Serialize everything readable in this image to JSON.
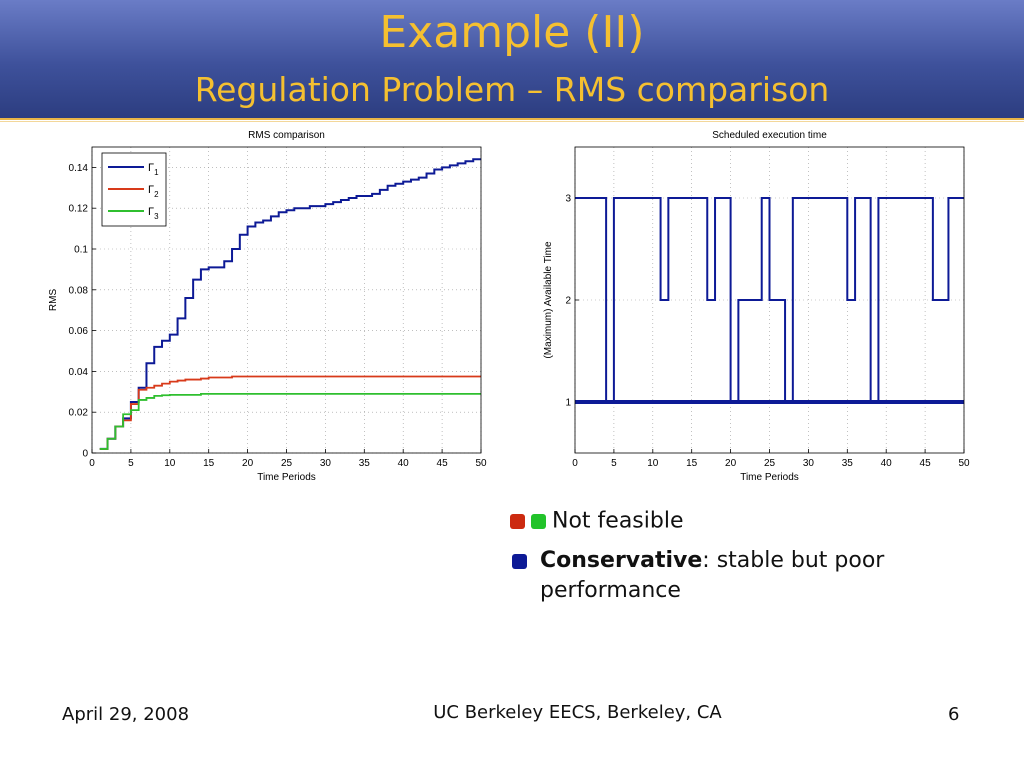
{
  "slide": {
    "title": "Example (II)",
    "subtitle": "Regulation Problem – RMS comparison",
    "footer_date": "April 29, 2008",
    "footer_org": "UC Berkeley EECS, Berkeley, CA",
    "page_number": "6",
    "header_color": "#3e519b",
    "title_color": "#f5c030"
  },
  "bullets": {
    "not_feasible": "Not feasible",
    "conservative_bold": "Conservative",
    "conservative_rest": ": stable but poor performance",
    "colors": {
      "red": "#cc2a10",
      "green": "#22c32a",
      "blue": "#0d1a96"
    }
  },
  "chart_data": [
    {
      "type": "line",
      "title": "RMS comparison",
      "xlabel": "Time Periods",
      "ylabel": "RMS",
      "xlim": [
        0,
        50
      ],
      "ylim": [
        0,
        0.15
      ],
      "xticks": [
        "0",
        "5",
        "10",
        "15",
        "20",
        "25",
        "30",
        "35",
        "40",
        "45",
        "50"
      ],
      "yticks": [
        "0",
        "0.02",
        "0.04",
        "0.06",
        "0.08",
        "0.1",
        "0.12",
        "0.14"
      ],
      "legend": "top-left",
      "grid": true,
      "series": [
        {
          "name": "Γ1",
          "color": "#0d1a96",
          "x": [
            1,
            2,
            3,
            4,
            5,
            6,
            7,
            8,
            9,
            10,
            11,
            12,
            13,
            14,
            15,
            16,
            17,
            18,
            19,
            20,
            21,
            22,
            23,
            24,
            25,
            26,
            27,
            28,
            29,
            30,
            31,
            32,
            33,
            34,
            35,
            36,
            37,
            38,
            39,
            40,
            41,
            42,
            43,
            44,
            45,
            46,
            47,
            48,
            49,
            50
          ],
          "y": [
            0.002,
            0.007,
            0.013,
            0.017,
            0.025,
            0.032,
            0.044,
            0.052,
            0.055,
            0.058,
            0.066,
            0.076,
            0.085,
            0.09,
            0.091,
            0.091,
            0.094,
            0.1,
            0.107,
            0.111,
            0.113,
            0.114,
            0.116,
            0.118,
            0.119,
            0.12,
            0.12,
            0.121,
            0.121,
            0.122,
            0.123,
            0.124,
            0.125,
            0.126,
            0.126,
            0.127,
            0.129,
            0.131,
            0.132,
            0.133,
            0.134,
            0.135,
            0.137,
            0.139,
            0.14,
            0.141,
            0.142,
            0.143,
            0.144,
            0.144
          ]
        },
        {
          "name": "Γ2",
          "color": "#d83a1a",
          "x": [
            1,
            2,
            3,
            4,
            5,
            6,
            7,
            8,
            9,
            10,
            11,
            12,
            13,
            14,
            15,
            16,
            17,
            18,
            19,
            20,
            50
          ],
          "y": [
            0.002,
            0.007,
            0.013,
            0.016,
            0.024,
            0.031,
            0.032,
            0.033,
            0.034,
            0.035,
            0.0355,
            0.036,
            0.036,
            0.0365,
            0.037,
            0.037,
            0.037,
            0.0375,
            0.0375,
            0.0375,
            0.0375
          ]
        },
        {
          "name": "Γ3",
          "color": "#2fbf2f",
          "x": [
            1,
            2,
            3,
            4,
            5,
            6,
            7,
            8,
            9,
            10,
            11,
            12,
            13,
            14,
            15,
            20,
            50
          ],
          "y": [
            0.002,
            0.007,
            0.013,
            0.019,
            0.021,
            0.026,
            0.027,
            0.028,
            0.0283,
            0.0285,
            0.0285,
            0.0285,
            0.0285,
            0.029,
            0.029,
            0.029,
            0.029
          ]
        }
      ]
    },
    {
      "type": "line",
      "title": "Scheduled execution time",
      "xlabel": "Time Periods",
      "ylabel": "(Maximum) Available Time",
      "xlim": [
        0,
        50
      ],
      "ylim": [
        0.5,
        3.5
      ],
      "xticks": [
        "0",
        "5",
        "10",
        "15",
        "20",
        "25",
        "30",
        "35",
        "40",
        "45",
        "50"
      ],
      "yticks": [
        "1",
        "2",
        "3"
      ],
      "grid": true,
      "series": [
        {
          "name": "",
          "color": "#0d1a96",
          "x": [
            0,
            4,
            4,
            5,
            5,
            11,
            11,
            12,
            12,
            17,
            17,
            18,
            18,
            20,
            20,
            21,
            21,
            24,
            24,
            25,
            25,
            27,
            27,
            28,
            28,
            35,
            35,
            36,
            36,
            38,
            38,
            39,
            39,
            46,
            46,
            48,
            48,
            50
          ],
          "y": [
            3,
            3,
            1,
            1,
            3,
            3,
            2,
            2,
            3,
            3,
            2,
            2,
            3,
            3,
            1,
            1,
            2,
            2,
            3,
            3,
            2,
            2,
            1,
            1,
            3,
            3,
            2,
            2,
            3,
            3,
            1,
            1,
            3,
            3,
            2,
            2,
            3,
            3
          ]
        },
        {
          "name": "",
          "color": "#0d1a96",
          "x": [
            0,
            50
          ],
          "y": [
            1,
            1
          ]
        }
      ]
    }
  ]
}
